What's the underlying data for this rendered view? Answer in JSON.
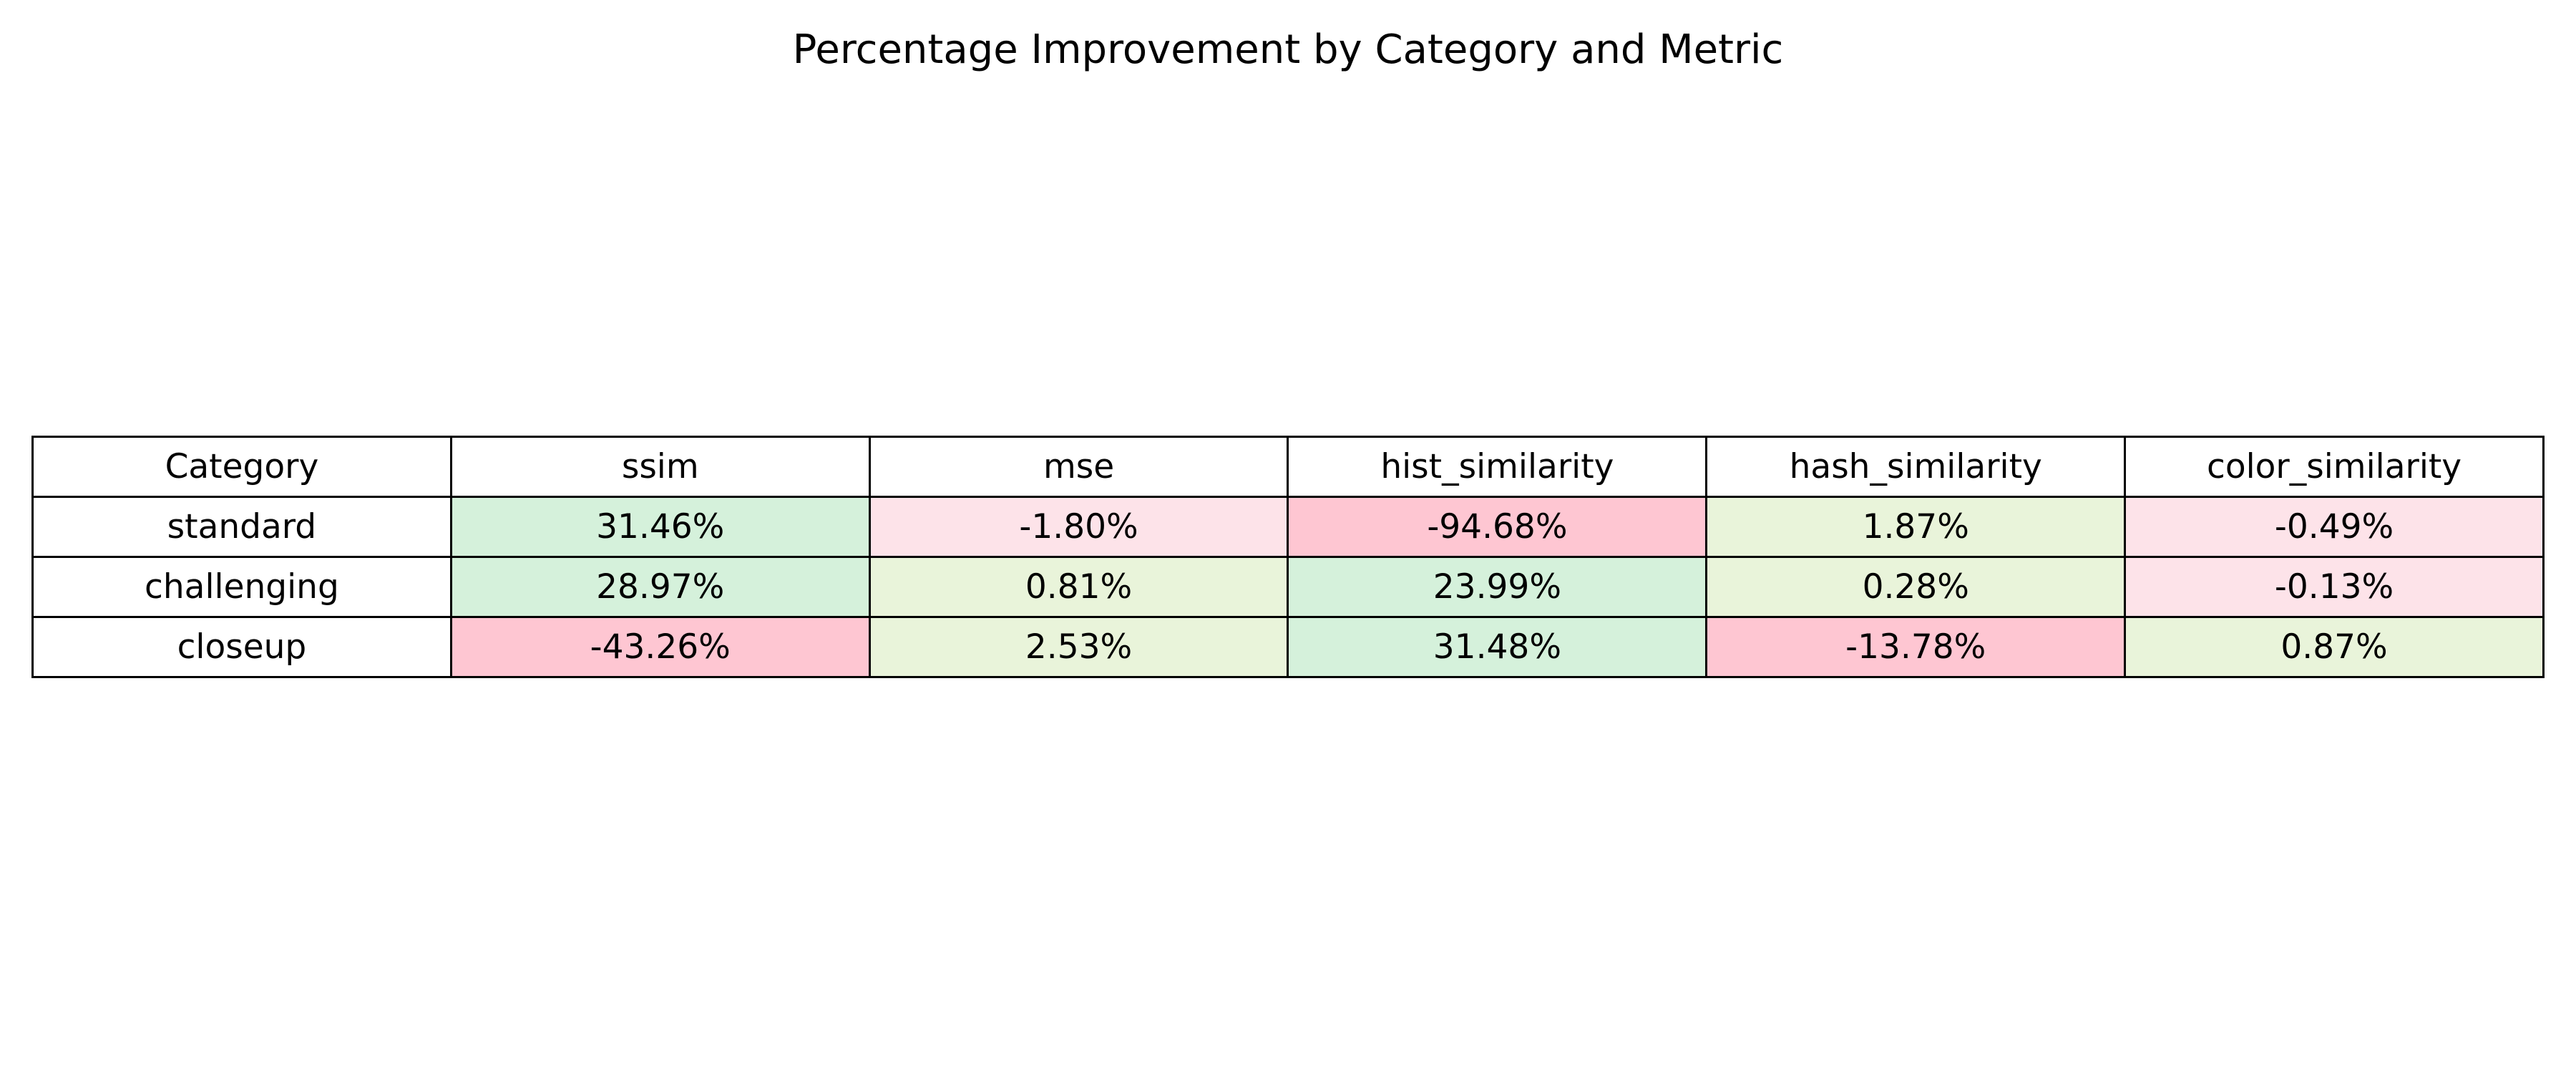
{
  "chart_data": {
    "type": "table",
    "title": "Percentage Improvement by Category and Metric",
    "columns": [
      "Category",
      "ssim",
      "mse",
      "hist_similarity",
      "hash_similarity",
      "color_similarity"
    ],
    "rows": [
      {
        "category": "standard",
        "values": [
          "31.46%",
          "-1.80%",
          "-94.68%",
          "1.87%",
          "-0.49%"
        ],
        "numeric": [
          31.46,
          -1.8,
          -94.68,
          1.87,
          -0.49
        ]
      },
      {
        "category": "challenging",
        "values": [
          "28.97%",
          "0.81%",
          "23.99%",
          "0.28%",
          "-0.13%"
        ],
        "numeric": [
          28.97,
          0.81,
          23.99,
          0.28,
          -0.13
        ]
      },
      {
        "category": "closeup",
        "values": [
          "-43.26%",
          "2.53%",
          "31.48%",
          "-13.78%",
          "0.87%"
        ],
        "numeric": [
          -43.26,
          2.53,
          31.48,
          -13.78,
          0.87
        ]
      }
    ],
    "colors": {
      "strong_positive": "#d5f1db",
      "weak_positive": "#e9f4da",
      "weak_negative": "#fde3e9",
      "strong_negative": "#fec6d2",
      "header": "#ffffff"
    }
  }
}
